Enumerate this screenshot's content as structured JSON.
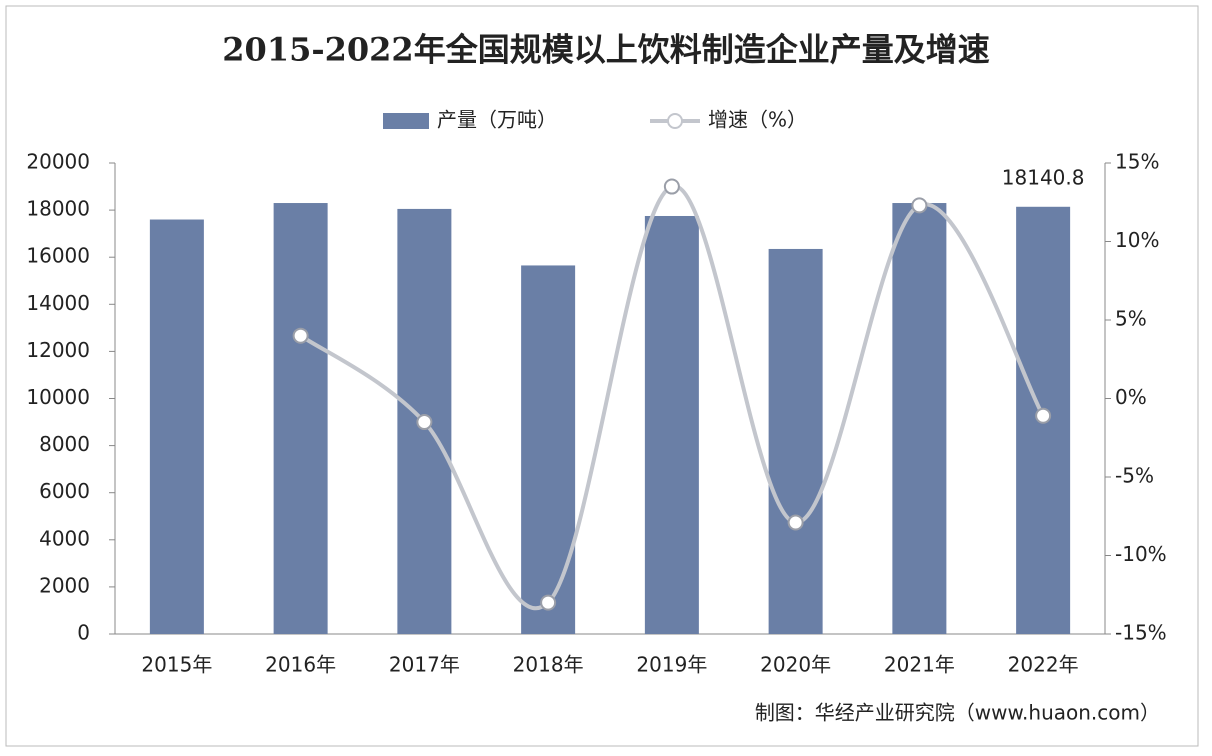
{
  "chart_data": {
    "type": "bar-line",
    "title": "2015-2022年全国规模以上饮料制造企业产量及增速",
    "categories": [
      "2015年",
      "2016年",
      "2017年",
      "2018年",
      "2019年",
      "2020年",
      "2021年",
      "2022年"
    ],
    "series": [
      {
        "name": "产量（万吨）",
        "color": "#6a7fa6",
        "type": "bar",
        "values": [
          17600,
          18300,
          18050,
          15650,
          17750,
          16350,
          18300,
          18140.8
        ]
      },
      {
        "name": "增速（%）",
        "color": "#c3c6cd",
        "type": "line",
        "axis": "y2",
        "values": [
          null,
          4.0,
          -1.5,
          -13.0,
          13.5,
          -7.9,
          12.3,
          -1.1
        ]
      }
    ],
    "ylim": [
      0,
      20000
    ],
    "yticks": [
      0,
      2000,
      4000,
      6000,
      8000,
      10000,
      12000,
      14000,
      16000,
      18000,
      20000
    ],
    "y2lim": [
      -15,
      15
    ],
    "y2ticks": [
      {
        "value": -15,
        "label": "-15%"
      },
      {
        "value": -10,
        "label": "-10%"
      },
      {
        "value": -5,
        "label": "-5%"
      },
      {
        "value": 0,
        "label": "0%"
      },
      {
        "value": 5,
        "label": "5%"
      },
      {
        "value": 10,
        "label": "10%"
      },
      {
        "value": 15,
        "label": "15%"
      }
    ],
    "source": "制图：华经产业研究院（www.huaon.com）"
  }
}
